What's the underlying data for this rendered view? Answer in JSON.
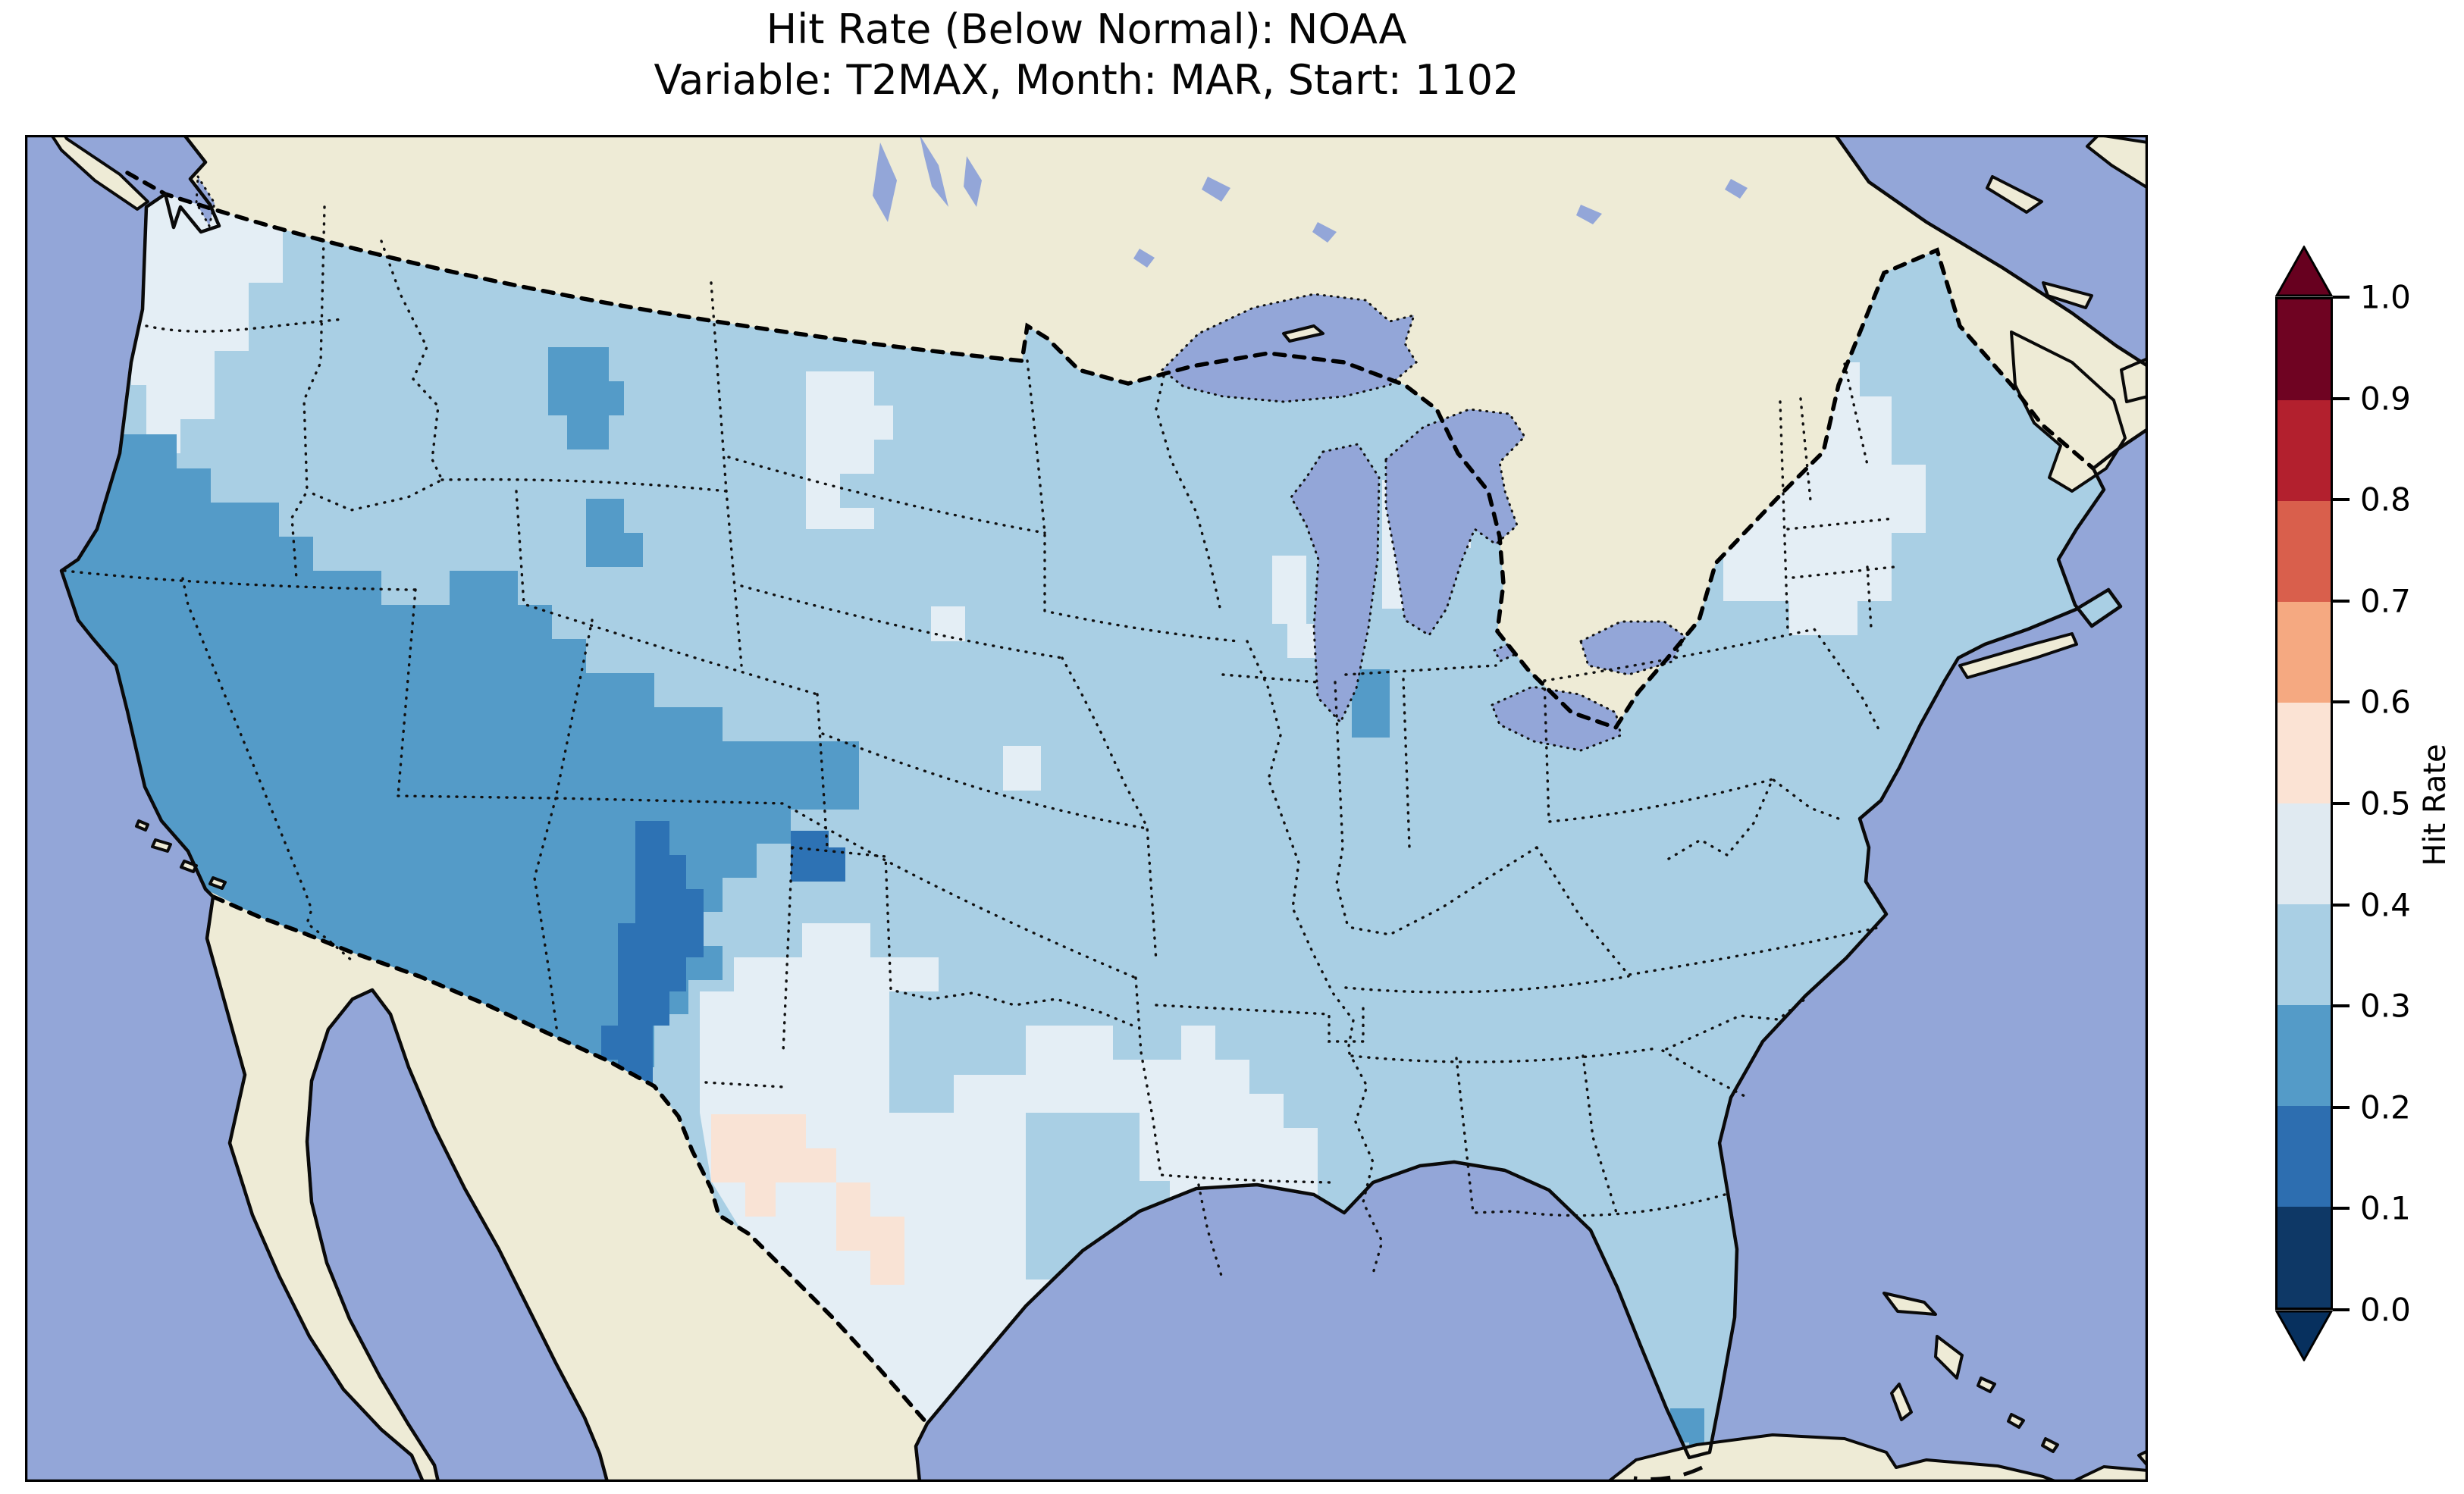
{
  "title": {
    "line1": "Hit Rate (Below Normal): NOAA",
    "line2": "Variable: T2MAX, Month: MAR, Start: 1102"
  },
  "colorbar": {
    "label": "Hit Rate",
    "ticks": [
      "1.0",
      "0.9",
      "0.8",
      "0.7",
      "0.6",
      "0.5",
      "0.4",
      "0.3",
      "0.2",
      "0.1",
      "0.0"
    ],
    "bands_top_to_bottom": [
      {
        "range": "0.9–1.0",
        "color": "#6f0322"
      },
      {
        "range": "0.8–0.9",
        "color": "#b3202e"
      },
      {
        "range": "0.7–0.8",
        "color": "#d95f4c"
      },
      {
        "range": "0.6–0.7",
        "color": "#f5a981"
      },
      {
        "range": "0.5–0.6",
        "color": "#fbe3d4"
      },
      {
        "range": "0.4–0.5",
        "color": "#e0eaf1"
      },
      {
        "range": "0.3–0.4",
        "color": "#a9cfe4"
      },
      {
        "range": "0.2–0.3",
        "color": "#549bc8"
      },
      {
        "range": "0.1–0.2",
        "color": "#2d6eb0"
      },
      {
        "range": "0.0–0.1",
        "color": "#0e3866"
      }
    ],
    "extend_over_color": "#67001f",
    "extend_under_color": "#07305e",
    "outline_color": "#000000"
  },
  "map": {
    "colors": {
      "ocean": "#93a6d8",
      "land": "#eeebd6",
      "lake_water": "#93a6d8",
      "coastline": "#0a0a0a",
      "state_border": "#111111",
      "country_border": "#000000",
      "frame": "#000000"
    },
    "field_palette": {
      "c05": "#0e3866",
      "c15": "#2d72b4",
      "c25": "#549bc8",
      "c35": "#a9cfe4",
      "c45": "#e4eef5",
      "c55": "#f9e3d5"
    }
  },
  "chart_data": {
    "type": "heatmap",
    "title": "Hit Rate (Below Normal): NOAA",
    "subtitle": "Variable: T2MAX, Month: MAR, Start: 1102",
    "variable": "T2MAX",
    "month": "MAR",
    "start": "1102",
    "domain": "Contiguous United States (~1-degree gridded field)",
    "colorbar": {
      "label": "Hit Rate",
      "range": [
        0.0,
        1.0
      ],
      "bin_size": 0.1,
      "tick_values": [
        0.0,
        0.1,
        0.2,
        0.3,
        0.4,
        0.5,
        0.6,
        0.7,
        0.8,
        0.9,
        1.0
      ],
      "colormap": "RdBu_r (discrete, 10 bins)",
      "extend": "both",
      "legend_position": "right"
    },
    "region_values": [
      {
        "region": "Most of central, midwestern, southeastern and eastern US (base field)",
        "hit_rate_bin": "0.3–0.4"
      },
      {
        "region": "Pacific Northwest coastal strip (W Washington / NW Oregon)",
        "hit_rate_bin": "0.4–0.5"
      },
      {
        "region": "California, Nevada, Utah, Arizona, western Colorado, southern Oregon/Idaho",
        "hit_rate_bin": "0.2–0.3"
      },
      {
        "region": "North-central Montana patch and small SW Wyoming patch",
        "hit_rate_bin": "0.2–0.3"
      },
      {
        "region": "Eastern/central New Mexico vertical strip down to the Mexican border",
        "hit_rate_bin": "0.1–0.2"
      },
      {
        "region": "Cell block near NM–TX–OK corner",
        "hit_rate_bin": "0.1–0.2"
      },
      {
        "region": "Southwest Texas (Big Bend / Rio Grande)",
        "hit_rate_bin": "0.5–0.6"
      },
      {
        "region": "Central & southern Texas into Oklahoma–Arkansas",
        "hit_rate_bin": "0.4–0.5"
      },
      {
        "region": "Western North Dakota patch; SD/NE border cells",
        "hit_rate_bin": "0.4–0.5"
      },
      {
        "region": "Central Lower Michigan and eastern Wisconsin cells",
        "hit_rate_bin": "0.4–0.5"
      },
      {
        "region": "New England (VT/NH/MA/CT + eastern NY)",
        "hit_rate_bin": "0.4–0.5"
      },
      {
        "region": "Northern Indiana cell",
        "hit_rate_bin": "0.2–0.3"
      },
      {
        "region": "South Florida tip cells",
        "hit_rate_bin": "0.2–0.3"
      },
      {
        "region": "Florida peninsula, Maine, mid-Atlantic coast",
        "hit_rate_bin": "0.3–0.4"
      }
    ]
  }
}
